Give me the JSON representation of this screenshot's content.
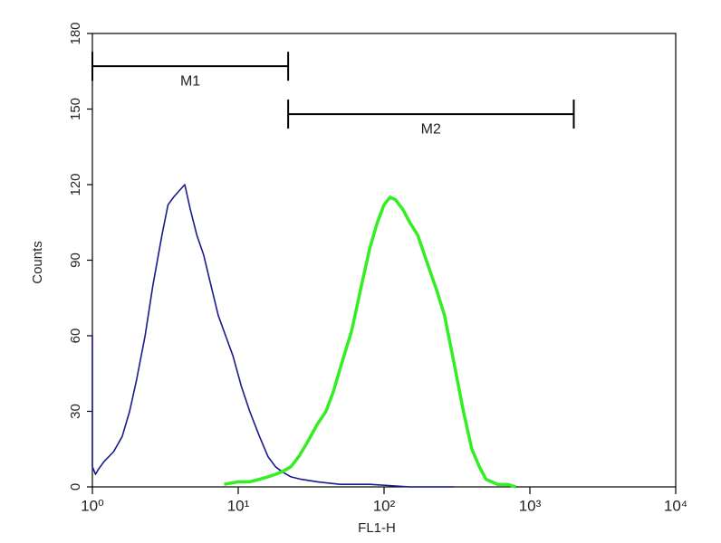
{
  "chart_data": {
    "type": "histogram-overlay",
    "xlabel": "FL1-H",
    "ylabel": "Counts",
    "xscale": "log",
    "xlim": [
      1,
      10000
    ],
    "xticks": [
      {
        "value": 1,
        "label": "10⁰"
      },
      {
        "value": 10,
        "label": "10¹"
      },
      {
        "value": 100,
        "label": "10²"
      },
      {
        "value": 1000,
        "label": "10³"
      },
      {
        "value": 10000,
        "label": "10⁴"
      }
    ],
    "ylim": [
      0,
      180
    ],
    "yticks": [
      0,
      30,
      60,
      90,
      120,
      150,
      180
    ],
    "series": [
      {
        "color": "#1a1a8c",
        "x": [
          1,
          1,
          1.05,
          1.1,
          1.2,
          1.4,
          1.6,
          1.8,
          2.0,
          2.3,
          2.6,
          3.0,
          3.3,
          3.6,
          4.0,
          4.3,
          4.7,
          5.2,
          5.8,
          6.5,
          7.3,
          8.2,
          9.2,
          10.5,
          12,
          14,
          16,
          18,
          20,
          23,
          27,
          35,
          50,
          80,
          150,
          300
        ],
        "values": [
          60,
          8,
          5,
          7,
          10,
          14,
          20,
          30,
          42,
          60,
          80,
          100,
          112,
          115,
          118,
          120,
          110,
          100,
          92,
          80,
          68,
          60,
          52,
          40,
          30,
          20,
          12,
          8,
          6,
          4,
          3,
          2,
          1,
          1,
          0,
          0
        ]
      },
      {
        "color": "#33ee22",
        "x": [
          8,
          10,
          12,
          14,
          16,
          18,
          20,
          23,
          26,
          30,
          35,
          40,
          45,
          50,
          60,
          70,
          80,
          90,
          100,
          110,
          120,
          135,
          150,
          170,
          200,
          230,
          260,
          300,
          350,
          400,
          450,
          500,
          600,
          700,
          800
        ],
        "values": [
          1,
          2,
          2,
          3,
          4,
          5,
          6,
          8,
          12,
          18,
          25,
          30,
          38,
          47,
          62,
          80,
          95,
          105,
          112,
          115,
          114,
          110,
          105,
          100,
          88,
          78,
          68,
          50,
          30,
          15,
          8,
          3,
          1,
          1,
          0
        ]
      }
    ],
    "markers": [
      {
        "label": "M1",
        "start": 1,
        "end": 22,
        "y": 167
      },
      {
        "label": "M2",
        "start": 22,
        "end": 2000,
        "y": 148
      }
    ]
  }
}
